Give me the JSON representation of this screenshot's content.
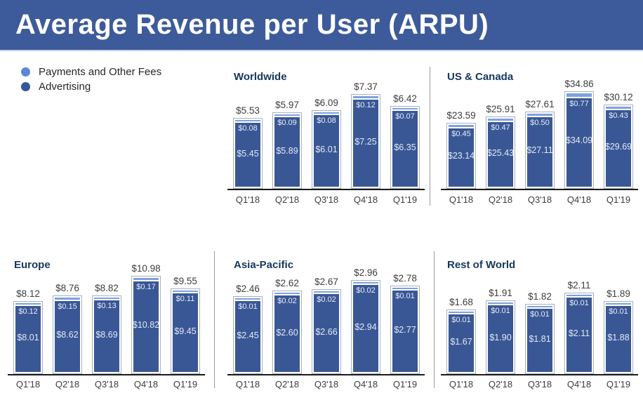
{
  "header": {
    "title": "Average Revenue per User (ARPU)"
  },
  "legend": {
    "items": [
      {
        "label": "Payments and Other Fees",
        "color": "#5c87d6"
      },
      {
        "label": "Advertising",
        "color": "#38549a"
      }
    ]
  },
  "colors": {
    "banner": "#3d5b9a",
    "payments_segment": "#7ea1dd",
    "advertising_segment": "#3a5795",
    "bar_border": "#a6b1c2",
    "chart_title": "#17375e",
    "label_text": "#3d3d3d",
    "axis": "#1a1a1a"
  },
  "chart_data": {
    "type": "bar",
    "stacked": true,
    "currency": "$",
    "legend_position": "top-left",
    "categories": [
      "Q1'18",
      "Q2'18",
      "Q3'18",
      "Q4'18",
      "Q1'19"
    ],
    "series_names": [
      "Advertising",
      "Payments and Other Fees"
    ],
    "charts": [
      {
        "title": "Worldwide",
        "totals": [
          5.53,
          5.97,
          6.09,
          7.37,
          6.42
        ],
        "payments": [
          0.08,
          0.09,
          0.08,
          0.12,
          0.07
        ],
        "advertising": [
          5.45,
          5.89,
          6.01,
          7.25,
          6.35
        ]
      },
      {
        "title": "US & Canada",
        "totals": [
          23.59,
          25.91,
          27.61,
          34.86,
          30.12
        ],
        "payments": [
          0.45,
          0.47,
          0.5,
          0.77,
          0.43
        ],
        "advertising": [
          23.14,
          25.43,
          27.11,
          34.09,
          29.69
        ]
      },
      {
        "title": "Europe",
        "totals": [
          8.12,
          8.76,
          8.82,
          10.98,
          9.55
        ],
        "payments": [
          0.12,
          0.15,
          0.13,
          0.17,
          0.11
        ],
        "advertising": [
          8.01,
          8.62,
          8.69,
          10.82,
          9.45
        ]
      },
      {
        "title": "Asia-Pacific",
        "totals": [
          2.46,
          2.62,
          2.67,
          2.96,
          2.78
        ],
        "payments": [
          0.01,
          0.02,
          0.02,
          0.02,
          0.01
        ],
        "advertising": [
          2.45,
          2.6,
          2.66,
          2.94,
          2.77
        ]
      },
      {
        "title": "Rest of World",
        "totals": [
          1.68,
          1.91,
          1.82,
          2.11,
          1.89
        ],
        "payments": [
          0.01,
          0.01,
          0.01,
          0.01,
          0.01
        ],
        "advertising": [
          1.67,
          1.9,
          1.81,
          2.11,
          1.88
        ]
      }
    ]
  }
}
